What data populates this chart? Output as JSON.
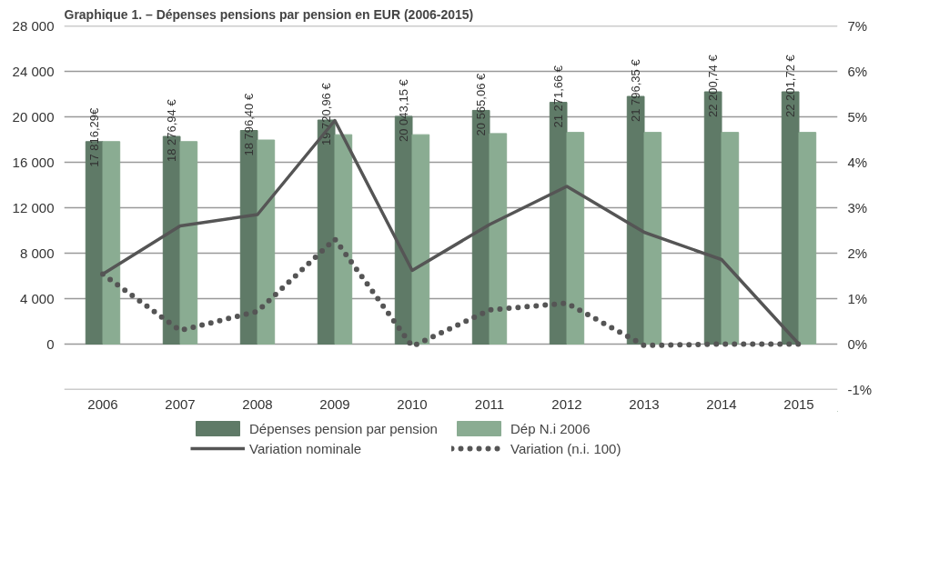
{
  "chart_data": {
    "type": "bar",
    "title": "Graphique 1. – Dépenses pensions par pension en EUR (2006-2015)",
    "categories": [
      "2006",
      "2007",
      "2008",
      "2009",
      "2010",
      "2011",
      "2012",
      "2013",
      "2014",
      "2015"
    ],
    "series": [
      {
        "name": "Dépenses pension par pension",
        "color": "#5f7a67",
        "values": [
          17816.29,
          18276.94,
          18796.4,
          19720.96,
          20043.15,
          20565.06,
          21271.66,
          21796.35,
          22200.74,
          22201.72
        ],
        "value_labels": [
          "17 816,29€",
          "18 276,94 €",
          "18 796,40 €",
          "19 720,96 €",
          "20 043,15 €",
          "20 565,06 €",
          "21 271,66 €",
          "21 796,35 €",
          "22 200,74 €",
          "22 201,72 €"
        ]
      },
      {
        "name": "Dép N.i 2006",
        "color": "#8aac92",
        "values": [
          17820,
          17820,
          17960,
          18430,
          18430,
          18530,
          18630,
          18630,
          18630,
          18630
        ]
      },
      {
        "name": "Variation nominale",
        "type": "line",
        "axis": "y2",
        "color": "#555555",
        "line_style": "solid",
        "values": [
          1.54,
          2.6,
          2.85,
          4.92,
          1.62,
          2.63,
          3.47,
          2.46,
          1.86,
          0
        ]
      },
      {
        "name": "Variation (n.i. 100)",
        "type": "line",
        "axis": "y2",
        "color": "#555555",
        "line_style": "dotted",
        "values": [
          1.54,
          0.3,
          0.72,
          2.31,
          -0.05,
          0.75,
          0.9,
          -0.03,
          0,
          0
        ]
      }
    ],
    "ylim": [
      -4000,
      28000
    ],
    "yticks": [
      {
        "value": -4000,
        "label": null
      },
      {
        "value": 0,
        "label": "0"
      },
      {
        "value": 4000,
        "label": "4 000"
      },
      {
        "value": 8000,
        "label": "8 000"
      },
      {
        "value": 12000,
        "label": "12 000"
      },
      {
        "value": 16000,
        "label": "16 000"
      },
      {
        "value": 20000,
        "label": "20 000"
      },
      {
        "value": 24000,
        "label": "24 000"
      },
      {
        "value": 28000,
        "label": "28 000"
      }
    ],
    "y2lim": [
      -1,
      7
    ],
    "y2ticks": [
      {
        "value": -1,
        "label": "-1%"
      },
      {
        "value": 0,
        "label": "0%"
      },
      {
        "value": 1,
        "label": "1%"
      },
      {
        "value": 2,
        "label": "2%"
      },
      {
        "value": 3,
        "label": "3%"
      },
      {
        "value": 4,
        "label": "4%"
      },
      {
        "value": 5,
        "label": "5%"
      },
      {
        "value": 6,
        "label": "6%"
      },
      {
        "value": 7,
        "label": "7%"
      }
    ],
    "grid": "y",
    "legend": "bottom"
  }
}
